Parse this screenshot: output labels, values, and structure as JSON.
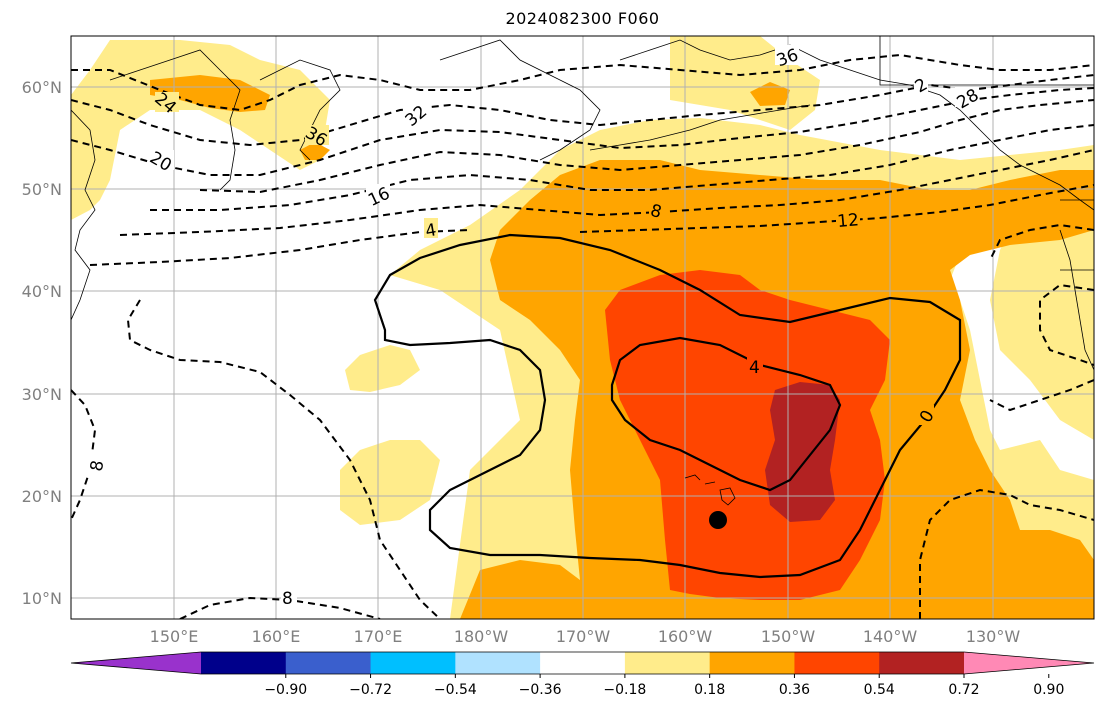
{
  "title": "2024082300 F060",
  "map": {
    "lat_labels": [
      "60°N",
      "50°N",
      "40°N",
      "30°N",
      "20°N",
      "10°N"
    ],
    "lon_labels": [
      "150°E",
      "160°E",
      "170°E",
      "180°W",
      "170°W",
      "160°W",
      "150°W",
      "140°W",
      "130°W"
    ],
    "contour_labels": [
      "36",
      "36",
      "32",
      "28",
      "24",
      "20",
      "16",
      "12",
      "8",
      "4",
      "4",
      "0",
      "8",
      "8",
      "2"
    ],
    "marker": "black-dot-storm-position"
  },
  "colorbar": {
    "ticks": [
      "−0.90",
      "−0.72",
      "−0.54",
      "−0.36",
      "−0.18",
      "0.18",
      "0.36",
      "0.54",
      "0.72",
      "0.90"
    ],
    "colors": [
      "#9932CC",
      "#00008B",
      "#3A5FCD",
      "#00BFFF",
      "#B0E2FF",
      "#FFFFFF",
      "#FFEC8B",
      "#FFA500",
      "#FF4500",
      "#B22222",
      "#FF89B5"
    ]
  }
}
